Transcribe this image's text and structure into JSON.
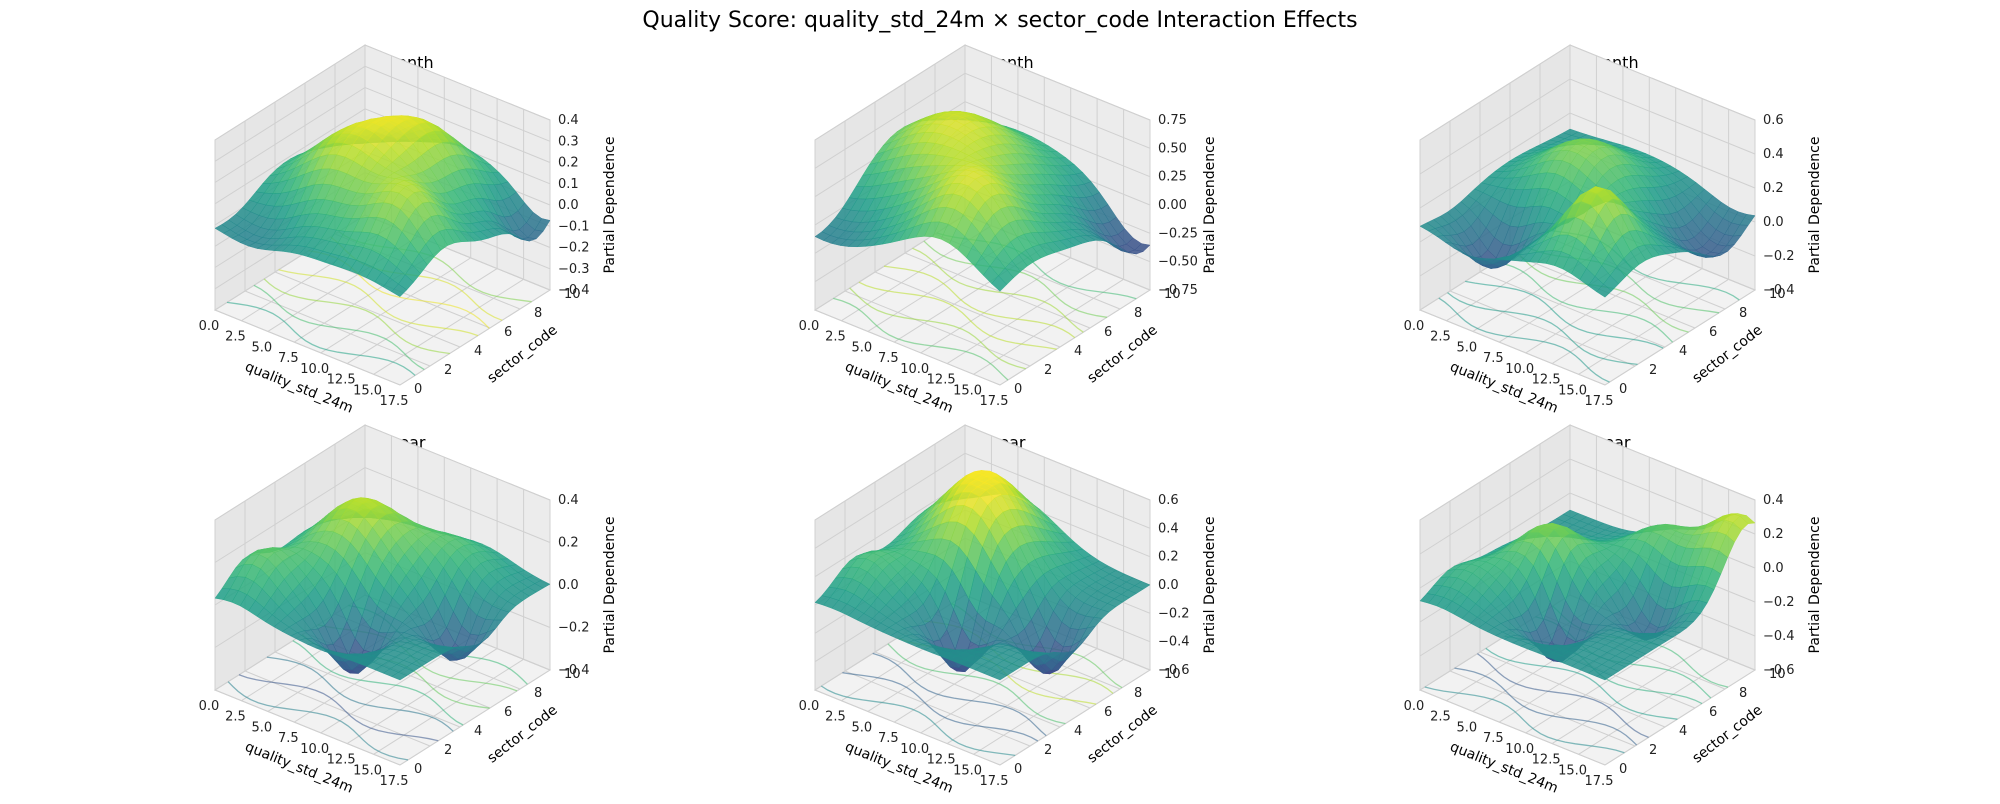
{
  "title": "Quality Score: quality_std_24m × sector_code Interaction Effects",
  "chart_data": [
    {
      "type": "surface3d",
      "title": "1 month",
      "xlabel": "quality_std_24m",
      "ylabel": "sector_code",
      "zlabel": "Partial Dependence",
      "xlim": [
        0,
        17.5
      ],
      "ylim": [
        0,
        10
      ],
      "zlim": [
        -0.4,
        0.4
      ],
      "xticks": [
        "0.0",
        "2.5",
        "5.0",
        "7.5",
        "10.0",
        "12.5",
        "15.0",
        "17.5"
      ],
      "yticks": [
        "0",
        "2",
        "4",
        "6",
        "8",
        "10"
      ],
      "zticks": [
        "0.4",
        "0.3",
        "0.2",
        "0.1",
        "0.0",
        "−0.1",
        "−0.2",
        "−0.3",
        "−0.4"
      ],
      "colormap": "viridis",
      "contour_projection": true
    },
    {
      "type": "surface3d",
      "title": "3 month",
      "xlabel": "quality_std_24m",
      "ylabel": "sector_code",
      "zlabel": "Partial Dependence",
      "xlim": [
        0,
        17.5
      ],
      "ylim": [
        0,
        10
      ],
      "zlim": [
        -0.75,
        0.75
      ],
      "xticks": [
        "0.0",
        "2.5",
        "5.0",
        "7.5",
        "10.0",
        "12.5",
        "15.0",
        "17.5"
      ],
      "yticks": [
        "0",
        "2",
        "4",
        "6",
        "8",
        "10"
      ],
      "zticks": [
        "0.75",
        "0.50",
        "0.25",
        "0.00",
        "−0.25",
        "−0.50",
        "−0.75"
      ],
      "colormap": "viridis",
      "contour_projection": true
    },
    {
      "type": "surface3d",
      "title": "6 month",
      "xlabel": "quality_std_24m",
      "ylabel": "sector_code",
      "zlabel": "Partial Dependence",
      "xlim": [
        0,
        17.5
      ],
      "ylim": [
        0,
        10
      ],
      "zlim": [
        -0.4,
        0.6
      ],
      "xticks": [
        "0.0",
        "2.5",
        "5.0",
        "7.5",
        "10.0",
        "12.5",
        "15.0",
        "17.5"
      ],
      "yticks": [
        "0",
        "2",
        "4",
        "6",
        "8",
        "10"
      ],
      "zticks": [
        "0.6",
        "0.4",
        "0.2",
        "0.0",
        "−0.2",
        "−0.4"
      ],
      "colormap": "viridis",
      "contour_projection": true
    },
    {
      "type": "surface3d",
      "title": "1 year",
      "xlabel": "quality_std_24m",
      "ylabel": "sector_code",
      "zlabel": "Partial Dependence",
      "xlim": [
        0,
        17.5
      ],
      "ylim": [
        0,
        10
      ],
      "zlim": [
        -0.4,
        0.4
      ],
      "xticks": [
        "0.0",
        "2.5",
        "5.0",
        "7.5",
        "10.0",
        "12.5",
        "15.0",
        "17.5"
      ],
      "yticks": [
        "0",
        "2",
        "4",
        "6",
        "8",
        "10"
      ],
      "zticks": [
        "0.4",
        "0.2",
        "0.0",
        "−0.2",
        "−0.4"
      ],
      "colormap": "viridis",
      "contour_projection": true
    },
    {
      "type": "surface3d",
      "title": "2 year",
      "xlabel": "quality_std_24m",
      "ylabel": "sector_code",
      "zlabel": "Partial Dependence",
      "xlim": [
        0,
        17.5
      ],
      "ylim": [
        0,
        10
      ],
      "zlim": [
        -0.6,
        0.6
      ],
      "xticks": [
        "0.0",
        "2.5",
        "5.0",
        "7.5",
        "10.0",
        "12.5",
        "15.0",
        "17.5"
      ],
      "yticks": [
        "0",
        "2",
        "4",
        "6",
        "8",
        "10"
      ],
      "zticks": [
        "0.6",
        "0.4",
        "0.2",
        "0.0",
        "−0.2",
        "−0.4",
        "−0.6"
      ],
      "colormap": "viridis",
      "contour_projection": true
    },
    {
      "type": "surface3d",
      "title": "5 year",
      "xlabel": "quality_std_24m",
      "ylabel": "sector_code",
      "zlabel": "Partial Dependence",
      "xlim": [
        0,
        17.5
      ],
      "ylim": [
        0,
        10
      ],
      "zlim": [
        -0.6,
        0.4
      ],
      "xticks": [
        "0.0",
        "2.5",
        "5.0",
        "7.5",
        "10.0",
        "12.5",
        "15.0",
        "17.5"
      ],
      "yticks": [
        "0",
        "2",
        "4",
        "6",
        "8",
        "10"
      ],
      "zticks": [
        "0.4",
        "0.2",
        "0.0",
        "−0.2",
        "−0.4",
        "−0.6"
      ],
      "colormap": "viridis",
      "contour_projection": true
    }
  ]
}
